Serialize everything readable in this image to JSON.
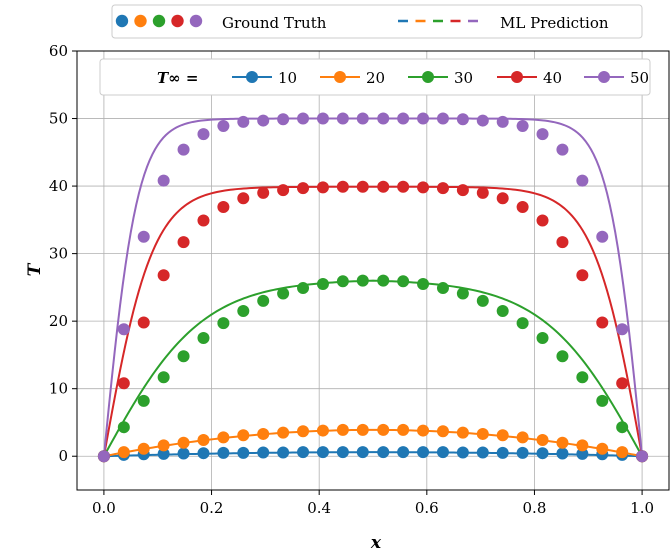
{
  "chart_data": {
    "type": "line",
    "title": "",
    "xlabel": "x",
    "ylabel": "T",
    "xlim": [
      -0.05,
      1.05
    ],
    "ylim": [
      -5,
      60
    ],
    "x_ticks": [
      "0.0",
      "0.2",
      "0.4",
      "0.6",
      "0.8",
      "1.0"
    ],
    "y_ticks": [
      "0",
      "10",
      "20",
      "30",
      "40",
      "50",
      "60"
    ],
    "grid": true,
    "top_legend": {
      "placement": "top-center outside",
      "ground_truth_label": "Ground Truth",
      "prediction_label": "ML Prediction"
    },
    "series_legend": {
      "placement": "top inside",
      "title": "T∞ ="
    },
    "series": [
      {
        "name": "10",
        "color": "#1f77b4",
        "peak": 0.6
      },
      {
        "name": "20",
        "color": "#ff7f0e",
        "peak": 3.9
      },
      {
        "name": "30",
        "color": "#2ca02c",
        "peak": 26.0
      },
      {
        "name": "40",
        "color": "#d62728",
        "peak": 39.9
      },
      {
        "name": "50",
        "color": "#9467bd",
        "peak": 50.0
      }
    ],
    "ground_truth_x": [
      0.0,
      0.037,
      0.074,
      0.111,
      0.148,
      0.185,
      0.222,
      0.259,
      0.296,
      0.333,
      0.37,
      0.407,
      0.444,
      0.481,
      0.519,
      0.556,
      0.593,
      0.63,
      0.667,
      0.704,
      0.741,
      0.778,
      0.815,
      0.852,
      0.889,
      0.926,
      0.963,
      1.0
    ],
    "ground_truth_y": [
      [
        0.0,
        0.2,
        0.3,
        0.35,
        0.4,
        0.45,
        0.5,
        0.5,
        0.55,
        0.55,
        0.6,
        0.6,
        0.6,
        0.6,
        0.6,
        0.6,
        0.6,
        0.6,
        0.55,
        0.55,
        0.5,
        0.5,
        0.45,
        0.4,
        0.35,
        0.3,
        0.2,
        0.0
      ],
      [
        0.0,
        0.6,
        1.1,
        1.6,
        2.0,
        2.4,
        2.8,
        3.1,
        3.3,
        3.5,
        3.7,
        3.8,
        3.9,
        3.9,
        3.9,
        3.9,
        3.8,
        3.7,
        3.5,
        3.3,
        3.1,
        2.8,
        2.4,
        2.0,
        1.6,
        1.1,
        0.6,
        0.0
      ],
      [
        0.0,
        4.3,
        8.2,
        11.7,
        14.8,
        17.5,
        19.7,
        21.5,
        23.0,
        24.1,
        24.9,
        25.5,
        25.9,
        26.0,
        26.0,
        25.9,
        25.5,
        24.9,
        24.1,
        23.0,
        21.5,
        19.7,
        17.5,
        14.8,
        11.7,
        8.2,
        4.3,
        0.0
      ],
      [
        0.0,
        10.8,
        19.8,
        26.8,
        31.7,
        34.9,
        36.9,
        38.2,
        39.0,
        39.4,
        39.7,
        39.8,
        39.9,
        39.9,
        39.9,
        39.9,
        39.8,
        39.7,
        39.4,
        39.0,
        38.2,
        36.9,
        34.9,
        31.7,
        26.8,
        19.8,
        10.8,
        0.0
      ],
      [
        0.0,
        18.8,
        32.5,
        40.8,
        45.4,
        47.7,
        48.9,
        49.5,
        49.7,
        49.9,
        50.0,
        50.0,
        50.0,
        50.0,
        50.0,
        50.0,
        50.0,
        50.0,
        49.9,
        49.7,
        49.5,
        48.9,
        47.7,
        45.4,
        40.8,
        32.5,
        18.8,
        0.0
      ]
    ]
  }
}
